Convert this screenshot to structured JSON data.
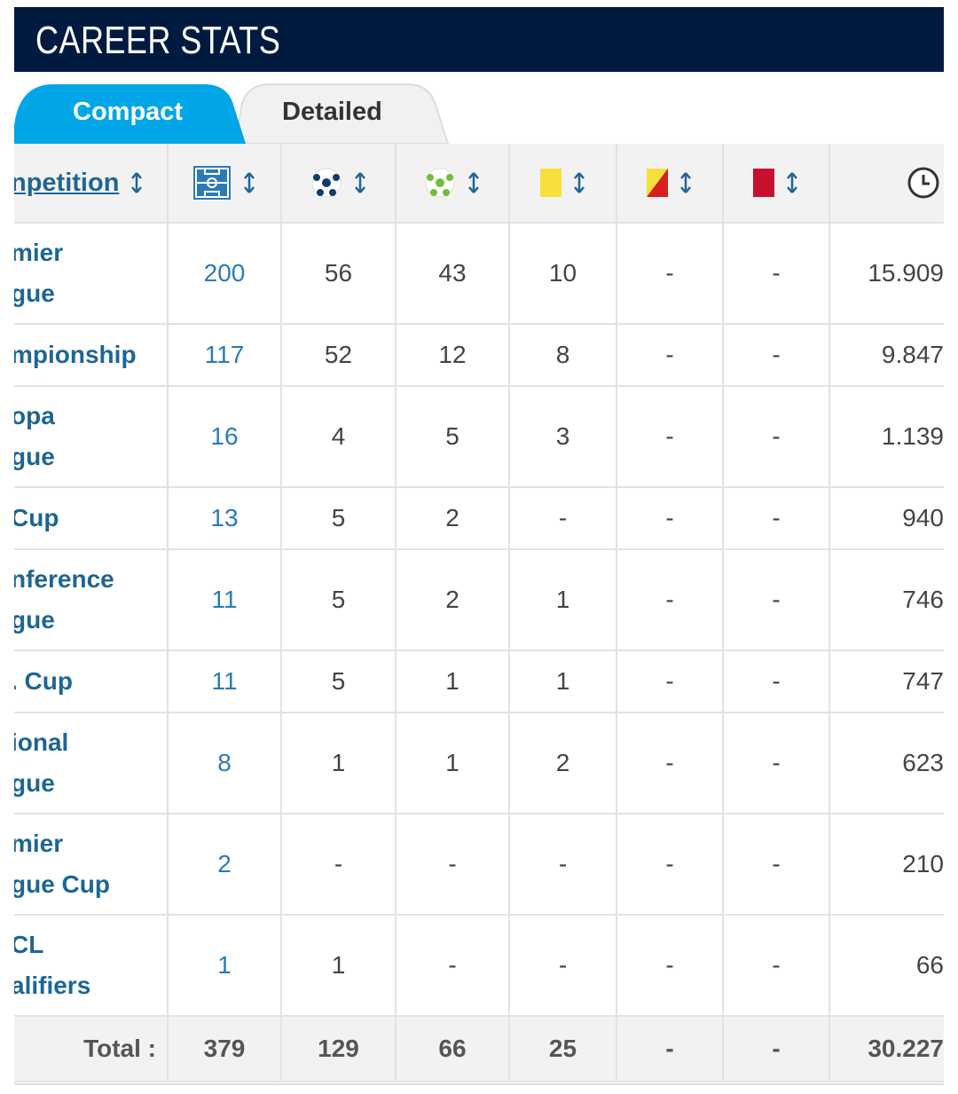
{
  "header": {
    "title": "CAREER STATS"
  },
  "tabs": [
    "Compact",
    "Detailed"
  ],
  "table": {
    "first_column": "npetition",
    "rows": [
      {
        "competition": [
          "mier",
          "gue"
        ],
        "cells": [
          "200",
          "56",
          "43",
          "10",
          "-",
          "-",
          "15.909"
        ]
      },
      {
        "competition": [
          "mpionship"
        ],
        "cells": [
          "117",
          "52",
          "12",
          "8",
          "-",
          "-",
          "9.847"
        ]
      },
      {
        "competition": [
          "opa",
          "gue"
        ],
        "cells": [
          "16",
          "4",
          "5",
          "3",
          "-",
          "-",
          "1.139"
        ]
      },
      {
        "competition": [
          "Cup"
        ],
        "cells": [
          "13",
          "5",
          "2",
          "-",
          "-",
          "-",
          "940"
        ]
      },
      {
        "competition": [
          "nference",
          "gue"
        ],
        "cells": [
          "11",
          "5",
          "2",
          "1",
          "-",
          "-",
          "746"
        ]
      },
      {
        "competition": [
          ". Cup"
        ],
        "cells": [
          "11",
          "5",
          "1",
          "1",
          "-",
          "-",
          "747"
        ]
      },
      {
        "competition": [
          "ional",
          "gue"
        ],
        "cells": [
          "8",
          "1",
          "1",
          "2",
          "-",
          "-",
          "623"
        ]
      },
      {
        "competition": [
          "mier",
          "gue Cup"
        ],
        "cells": [
          "2",
          "-",
          "-",
          "-",
          "-",
          "-",
          "210"
        ]
      },
      {
        "competition": [
          "CL",
          "alifiers"
        ],
        "cells": [
          "1",
          "1",
          "-",
          "-",
          "-",
          "-",
          "66"
        ]
      }
    ],
    "total": {
      "label": "Total :",
      "cells": [
        "379",
        "129",
        "66",
        "25",
        "-",
        "-",
        "30.227"
      ]
    }
  }
}
